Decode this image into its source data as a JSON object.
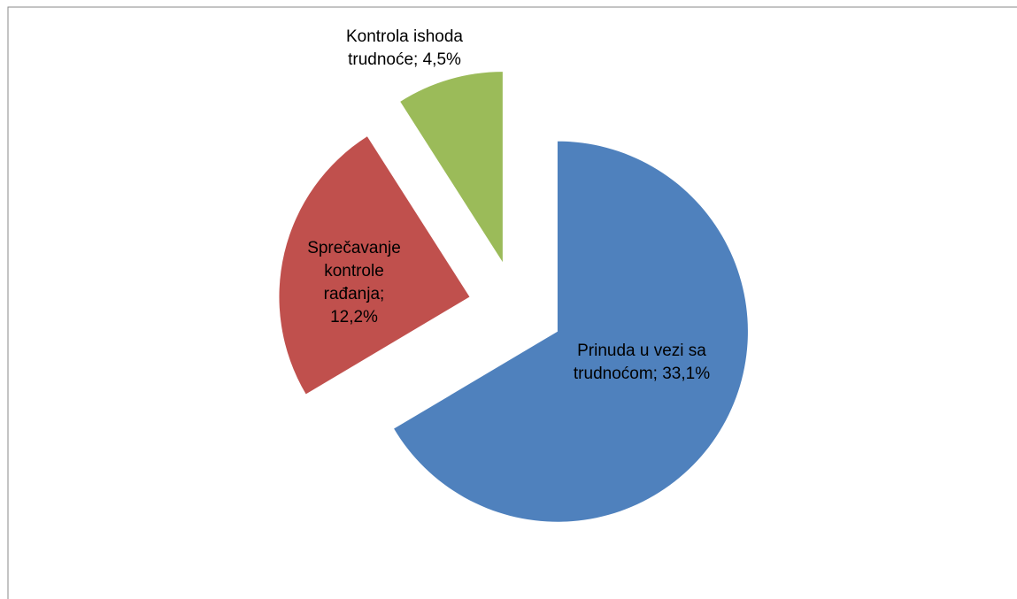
{
  "chart_data": {
    "type": "pie",
    "values": [
      33.1,
      12.2,
      4.5
    ],
    "value_labels": [
      "Prinuda u vezi sa trudnoćom; 33,1%",
      "Sprečavanje kontrole rađanja; 12,2%",
      "Kontrola ishoda trudnoće; 4,5%"
    ],
    "colors": [
      "#4f81bd",
      "#c0504d",
      "#9bbb59"
    ],
    "exploded": true
  }
}
